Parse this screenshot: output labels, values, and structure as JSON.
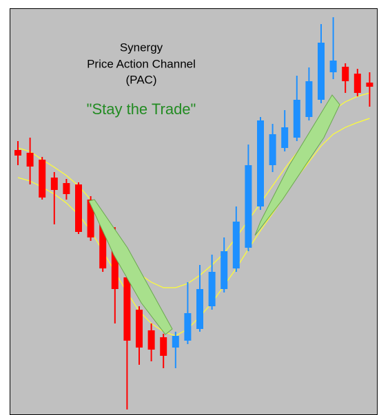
{
  "chart_data": {
    "type": "candlestick",
    "title_lines": [
      "Synergy",
      "Price Action Channel",
      "(PAC)"
    ],
    "annotation": "\"Stay the Trade\"",
    "ylim": [
      0,
      591
    ],
    "up_color": "#1e90ff",
    "down_color": "#ff0000",
    "channel_color": "#ffff33",
    "open": [
      385,
      381,
      371,
      345,
      337,
      335,
      313,
      283,
      248,
      200,
      153,
      123,
      113,
      98,
      108,
      125,
      158,
      183,
      213,
      243,
      303,
      363,
      388,
      403,
      433,
      458,
      498,
      506,
      496,
      483
    ],
    "high": [
      398,
      403,
      375,
      353,
      343,
      338,
      318,
      293,
      273,
      213,
      158,
      133,
      118,
      121,
      193,
      218,
      233,
      258,
      303,
      393,
      433,
      423,
      443,
      493,
      505,
      568,
      578,
      511,
      503,
      498
    ],
    "low": [
      363,
      335,
      313,
      277,
      313,
      263,
      253,
      208,
      133,
      8,
      73,
      78,
      68,
      68,
      103,
      121,
      153,
      178,
      208,
      238,
      298,
      353,
      383,
      398,
      428,
      453,
      488,
      468,
      463,
      448
    ],
    "close": [
      377,
      361,
      316,
      327,
      321,
      266,
      258,
      213,
      183,
      108,
      98,
      95,
      86,
      115,
      148,
      183,
      208,
      238,
      281,
      363,
      428,
      408,
      418,
      458,
      485,
      541,
      515,
      485,
      468,
      477
    ],
    "series": [
      {
        "values": [
          388,
          383,
          371,
          360,
          348,
          333,
          313,
          288,
          258,
          228,
          205,
          193,
          185,
          185,
          191,
          203,
          218,
          235,
          258,
          283,
          308,
          333,
          358,
          381,
          403,
          425,
          443,
          455,
          463,
          468
        ]
      },
      {
        "values": [
          345,
          340,
          331,
          321,
          308,
          291,
          268,
          238,
          208,
          178,
          151,
          133,
          121,
          115,
          125,
          143,
          163,
          188,
          213,
          241,
          268,
          293,
          318,
          345,
          368,
          391,
          408,
          418,
          425,
          431
        ]
      }
    ]
  }
}
